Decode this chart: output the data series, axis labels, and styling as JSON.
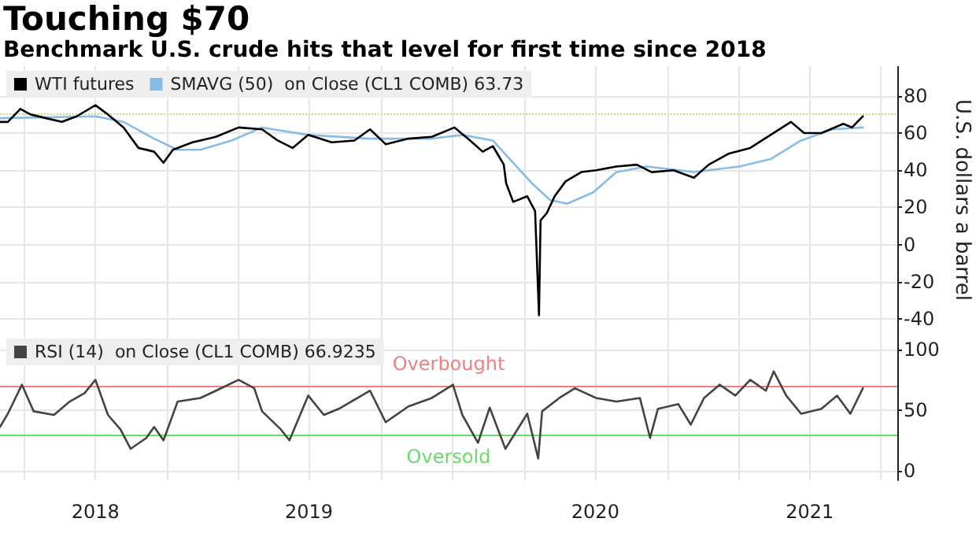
{
  "chart_data": [
    {
      "type": "line",
      "title": "Touching $70",
      "subtitle": "Benchmark U.S. crude hits that level for first time since 2018",
      "ylabel": "U.S. dollars a barrel",
      "legend": "top left",
      "grid": true,
      "marker": "none",
      "line_style": "solid",
      "tick_labels": "y",
      "xlim": [
        "2018-06-01",
        "2021-07-22"
      ],
      "xticks": [
        {
          "value": "2018-07-01",
          "label": null
        },
        {
          "value": "2018-10-01",
          "label": null
        },
        {
          "value": "2019-01-01",
          "label": null
        },
        {
          "value": "2019-04-01",
          "label": null
        },
        {
          "value": "2019-07-01",
          "label": null
        },
        {
          "value": "2019-10-01",
          "label": null
        },
        {
          "value": "2020-01-01",
          "label": null
        },
        {
          "value": "2020-04-01",
          "label": null
        },
        {
          "value": "2020-07-01",
          "label": null
        },
        {
          "value": "2020-10-01",
          "label": null
        },
        {
          "value": "2021-01-01",
          "label": null
        },
        {
          "value": "2021-04-01",
          "label": null
        },
        {
          "value": "2021-07-01",
          "label": null
        }
      ],
      "ylim": [
        -48,
        96
      ],
      "yticks": [
        -40,
        -20,
        0,
        20,
        40,
        60,
        80
      ],
      "ref_lines": [
        {
          "axis": "y",
          "value": 70,
          "label": null,
          "color": "#c8dc8c",
          "line_style": "dotted"
        }
      ],
      "series": [
        {
          "name": "WTI futures",
          "color": "#000000",
          "x": [
            "2018-06-01",
            "2018-06-11",
            "2018-06-27",
            "2018-07-10",
            "2018-07-30",
            "2018-08-19",
            "2018-09-07",
            "2018-10-01",
            "2018-10-17",
            "2018-11-06",
            "2018-11-25",
            "2018-12-15",
            "2018-12-27",
            "2019-01-08",
            "2019-02-02",
            "2019-03-04",
            "2019-04-02",
            "2019-05-02",
            "2019-05-22",
            "2019-06-10",
            "2019-06-30",
            "2019-07-30",
            "2019-08-28",
            "2019-09-17",
            "2019-10-07",
            "2019-11-05",
            "2019-12-05",
            "2020-01-03",
            "2020-01-23",
            "2020-02-08",
            "2020-02-21",
            "2020-03-06",
            "2020-03-09",
            "2020-03-18",
            "2020-04-05",
            "2020-04-15",
            "2020-04-20",
            "2020-04-22",
            "2020-04-30",
            "2020-05-10",
            "2020-05-24",
            "2020-06-13",
            "2020-07-02",
            "2020-07-28",
            "2020-08-23",
            "2020-09-11",
            "2020-10-09",
            "2020-11-04",
            "2020-11-23",
            "2020-12-19",
            "2021-01-15",
            "2021-02-10",
            "2021-03-08",
            "2021-03-25",
            "2021-04-16",
            "2021-05-14",
            "2021-05-25",
            "2021-06-08"
          ],
          "values": [
            66,
            66,
            73,
            70,
            68,
            66,
            69,
            75,
            70,
            63,
            52,
            50,
            44,
            51,
            55,
            58,
            63,
            62,
            56,
            52,
            59,
            55,
            56,
            62,
            54,
            57,
            58,
            63,
            56,
            50,
            53,
            43,
            33,
            23,
            26,
            18,
            -38,
            13,
            17,
            26,
            34,
            39,
            40,
            42,
            43,
            39,
            40,
            36,
            43,
            49,
            52,
            59,
            66,
            60,
            60,
            65,
            63,
            69
          ]
        },
        {
          "name": "SMAVG (50)  on Close (CL1 COMB) 63.73",
          "color": "#86bde6",
          "x": [
            "2018-06-01",
            "2018-10-01",
            "2018-11-06",
            "2018-12-15",
            "2019-01-14",
            "2019-02-12",
            "2019-03-24",
            "2019-05-02",
            "2019-06-30",
            "2019-09-17",
            "2019-12-05",
            "2020-01-13",
            "2020-02-21",
            "2020-03-18",
            "2020-04-11",
            "2020-05-04",
            "2020-05-26",
            "2020-06-28",
            "2020-07-28",
            "2020-09-05",
            "2020-11-04",
            "2021-01-01",
            "2021-02-10",
            "2021-03-21",
            "2021-04-30",
            "2021-06-08"
          ],
          "values": [
            68,
            69,
            66,
            57,
            51,
            51,
            56,
            63,
            59,
            57,
            57,
            59,
            56,
            44,
            33,
            24,
            22,
            28,
            39,
            42,
            39,
            42,
            46,
            56,
            62,
            63
          ]
        }
      ]
    },
    {
      "type": "line",
      "legend": "top left",
      "grid": true,
      "marker": "none",
      "line_style": "solid",
      "xlim": [
        "2018-06-01",
        "2021-07-22"
      ],
      "xticks": [
        {
          "value": "2018-07-01",
          "label": null
        },
        {
          "value": "2018-10-01",
          "label": "2018"
        },
        {
          "value": "2019-01-01",
          "label": null
        },
        {
          "value": "2019-04-01",
          "label": null
        },
        {
          "value": "2019-07-01",
          "label": "2019"
        },
        {
          "value": "2019-10-01",
          "label": null
        },
        {
          "value": "2020-01-01",
          "label": null
        },
        {
          "value": "2020-04-01",
          "label": null
        },
        {
          "value": "2020-07-01",
          "label": "2020"
        },
        {
          "value": "2020-10-01",
          "label": null
        },
        {
          "value": "2021-01-01",
          "label": null
        },
        {
          "value": "2021-04-01",
          "label": "2021"
        },
        {
          "value": "2021-07-01",
          "label": null
        }
      ],
      "ylim": [
        -8,
        113
      ],
      "yticks": [
        0,
        50,
        100
      ],
      "ref_lines": [
        {
          "axis": "y",
          "value": 70,
          "label": "Overbought",
          "color": "#f08080",
          "line_style": "solid"
        },
        {
          "axis": "y",
          "value": 30,
          "label": "Oversold",
          "color": "#66dd66",
          "line_style": "solid"
        }
      ],
      "series": [
        {
          "name": "RSI (14)  on Close (CL1 COMB) 66.9235",
          "color": "#444444",
          "x": [
            "2018-06-01",
            "2018-06-11",
            "2018-06-29",
            "2018-07-14",
            "2018-08-09",
            "2018-08-29",
            "2018-09-17",
            "2018-10-01",
            "2018-10-17",
            "2018-11-02",
            "2018-11-15",
            "2018-12-05",
            "2018-12-15",
            "2018-12-27",
            "2019-01-14",
            "2019-02-12",
            "2019-03-04",
            "2019-04-02",
            "2019-04-22",
            "2019-05-02",
            "2019-05-26",
            "2019-06-06",
            "2019-06-30",
            "2019-07-20",
            "2019-08-08",
            "2019-09-17",
            "2019-10-07",
            "2019-11-05",
            "2019-12-05",
            "2020-01-01",
            "2020-01-13",
            "2020-02-02",
            "2020-02-17",
            "2020-03-08",
            "2020-04-05",
            "2020-04-19",
            "2020-04-24",
            "2020-05-16",
            "2020-06-05",
            "2020-07-02",
            "2020-07-28",
            "2020-08-27",
            "2020-09-09",
            "2020-09-19",
            "2020-10-15",
            "2020-10-31",
            "2020-11-17",
            "2020-12-07",
            "2020-12-27",
            "2021-01-15",
            "2021-02-04",
            "2021-02-14",
            "2021-03-02",
            "2021-03-21",
            "2021-04-16",
            "2021-05-06",
            "2021-05-23",
            "2021-06-08"
          ],
          "values": [
            36,
            47,
            71,
            49,
            46,
            57,
            64,
            75,
            46,
            34,
            18,
            27,
            36,
            25,
            57,
            60,
            66,
            75,
            68,
            49,
            34,
            25,
            62,
            46,
            51,
            66,
            40,
            53,
            60,
            71,
            46,
            23,
            52,
            18,
            47,
            10,
            49,
            60,
            68,
            60,
            57,
            60,
            27,
            51,
            55,
            38,
            60,
            71,
            62,
            75,
            66,
            82,
            62,
            47,
            51,
            62,
            47,
            68
          ]
        }
      ]
    }
  ]
}
